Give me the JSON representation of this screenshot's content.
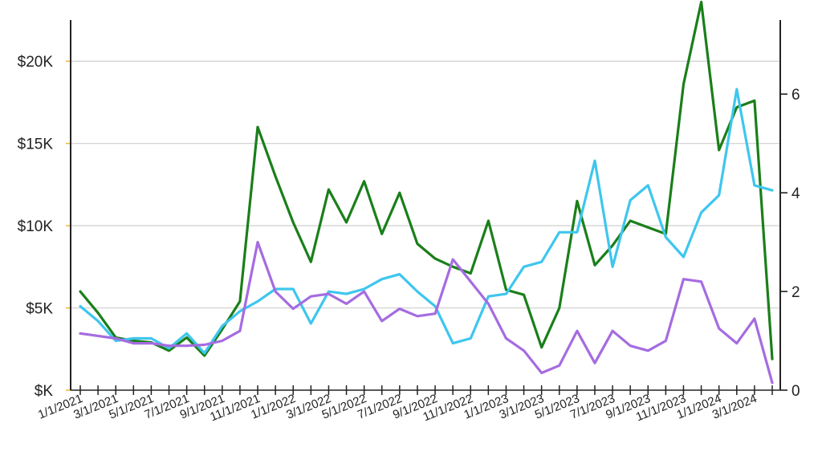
{
  "chart_data": {
    "type": "line",
    "title": "",
    "xlabel": "",
    "ylabel": "",
    "x": [
      "1/1/2021",
      "2/1/2021",
      "3/1/2021",
      "4/1/2021",
      "5/1/2021",
      "6/1/2021",
      "7/1/2021",
      "8/1/2021",
      "9/1/2021",
      "10/1/2021",
      "11/1/2021",
      "12/1/2021",
      "1/1/2022",
      "2/1/2022",
      "3/1/2022",
      "4/1/2022",
      "5/1/2022",
      "6/1/2022",
      "7/1/2022",
      "8/1/2022",
      "9/1/2022",
      "10/1/2022",
      "11/1/2022",
      "12/1/2022",
      "1/1/2023",
      "2/1/2023",
      "3/1/2023",
      "4/1/2023",
      "5/1/2023",
      "6/1/2023",
      "7/1/2023",
      "8/1/2023",
      "9/1/2023",
      "10/1/2023",
      "11/1/2023",
      "12/1/2023",
      "1/1/2024",
      "2/1/2024",
      "3/1/2024",
      "4/1/2024"
    ],
    "x_tick_labels": [
      "1/1/2021",
      "3/1/2021",
      "5/1/2021",
      "7/1/2021",
      "9/1/2021",
      "11/1/2021",
      "1/1/2022",
      "3/1/2022",
      "5/1/2022",
      "7/1/2022",
      "9/1/2022",
      "11/1/2022",
      "1/1/2023",
      "3/1/2023",
      "5/1/2023",
      "7/1/2023",
      "9/1/2023",
      "11/1/2023",
      "1/1/2024",
      "3/1/2024"
    ],
    "y_left": {
      "ticks": [
        0,
        5000,
        10000,
        15000,
        20000
      ],
      "tick_labels": [
        "$K",
        "$5K",
        "$10K",
        "$15K",
        "$20K"
      ],
      "range": [
        0,
        22500
      ]
    },
    "y_right": {
      "ticks": [
        0,
        2,
        4,
        6
      ],
      "tick_labels": [
        "0",
        "2",
        "4",
        "6"
      ],
      "range": [
        0,
        7.5
      ]
    },
    "grid": "horizontal",
    "legend": "none",
    "series": [
      {
        "color": "#1a7f1a",
        "axis": "left",
        "values": [
          6000,
          4700,
          3200,
          3000,
          2900,
          2400,
          3200,
          2100,
          3700,
          5400,
          16000,
          13000,
          10200,
          7800,
          12200,
          10200,
          12700,
          9500,
          12000,
          8900,
          8000,
          7500,
          7100,
          10300,
          6100,
          5800,
          2600,
          5000,
          11500,
          7600,
          8800,
          10300,
          9900,
          9500,
          18600,
          23600,
          14600,
          17200,
          17600,
          1900
        ]
      },
      {
        "color": "#3ec6ee",
        "axis": "right",
        "values": [
          1.7,
          1.4,
          1.0,
          1.05,
          1.05,
          0.85,
          1.15,
          0.75,
          1.3,
          1.6,
          1.8,
          2.05,
          2.05,
          1.35,
          2.0,
          1.95,
          2.05,
          2.25,
          2.35,
          2.0,
          1.7,
          0.95,
          1.05,
          1.9,
          1.95,
          2.5,
          2.6,
          3.2,
          3.2,
          4.65,
          2.5,
          3.85,
          4.15,
          3.1,
          2.7,
          3.6,
          3.95,
          6.1,
          4.15,
          4.05
        ]
      },
      {
        "color": "#a56ce0",
        "axis": "right",
        "values": [
          1.15,
          1.1,
          1.05,
          0.95,
          0.95,
          0.9,
          0.9,
          0.92,
          1.0,
          1.2,
          3.0,
          2.0,
          1.65,
          1.9,
          1.95,
          1.75,
          2.0,
          1.4,
          1.65,
          1.5,
          1.55,
          2.65,
          2.2,
          1.75,
          1.05,
          0.8,
          0.35,
          0.5,
          1.2,
          0.55,
          1.2,
          0.9,
          0.8,
          1.0,
          2.25,
          2.2,
          1.25,
          0.95,
          1.45,
          0.15
        ]
      }
    ]
  }
}
